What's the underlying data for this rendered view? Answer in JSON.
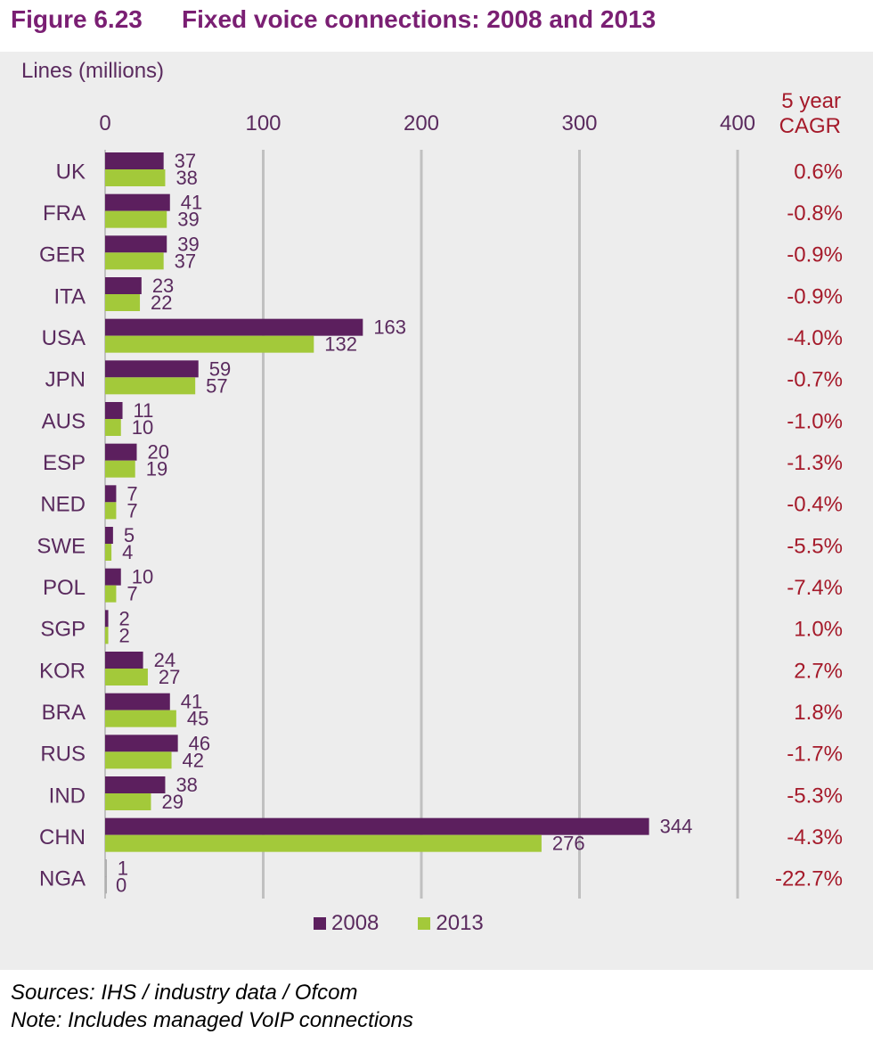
{
  "figure": {
    "number": "Figure 6.23",
    "title": "Fixed voice connections: 2008 and 2013"
  },
  "colors": {
    "series_2008": "#5c1f5e",
    "series_2013": "#a3c93a",
    "title": "#7a1f73",
    "axis_text": "#5a2a5e",
    "cagr": "#a51a2a",
    "grid": "#c0c0c0",
    "background": "#ededed"
  },
  "chart_data": {
    "type": "bar",
    "orientation": "horizontal",
    "ylabel": "Lines (millions)",
    "xlim": [
      0,
      400
    ],
    "x_ticks": [
      "0",
      "100",
      "200",
      "300",
      "400"
    ],
    "grid": true,
    "legend_position": "bottom",
    "categories": [
      "UK",
      "FRA",
      "GER",
      "ITA",
      "USA",
      "JPN",
      "AUS",
      "ESP",
      "NED",
      "SWE",
      "POL",
      "SGP",
      "KOR",
      "BRA",
      "RUS",
      "IND",
      "CHN",
      "NGA"
    ],
    "series": [
      {
        "name": "2008",
        "values": [
          37,
          41,
          39,
          23,
          163,
          59,
          11,
          20,
          7,
          5,
          10,
          2,
          24,
          41,
          46,
          38,
          344,
          1
        ]
      },
      {
        "name": "2013",
        "values": [
          38,
          39,
          37,
          22,
          132,
          57,
          10,
          19,
          7,
          4,
          7,
          2,
          27,
          45,
          42,
          29,
          276,
          0
        ]
      }
    ],
    "cagr_title": "5 year CAGR",
    "cagr": [
      "0.6%",
      "-0.8%",
      "-0.9%",
      "-0.9%",
      "-4.0%",
      "-0.7%",
      "-1.0%",
      "-1.3%",
      "-0.4%",
      "-5.5%",
      "-7.4%",
      "1.0%",
      "2.7%",
      "1.8%",
      "-1.7%",
      "-5.3%",
      "-4.3%",
      "-22.7%"
    ]
  },
  "cagr_title_lines": [
    "5 year",
    "CAGR"
  ],
  "legend": {
    "label_2008": "2008",
    "label_2013": "2013"
  },
  "notes": {
    "sources": "Sources: IHS / industry data / Ofcom",
    "note": "Note: Includes managed VoIP connections"
  }
}
